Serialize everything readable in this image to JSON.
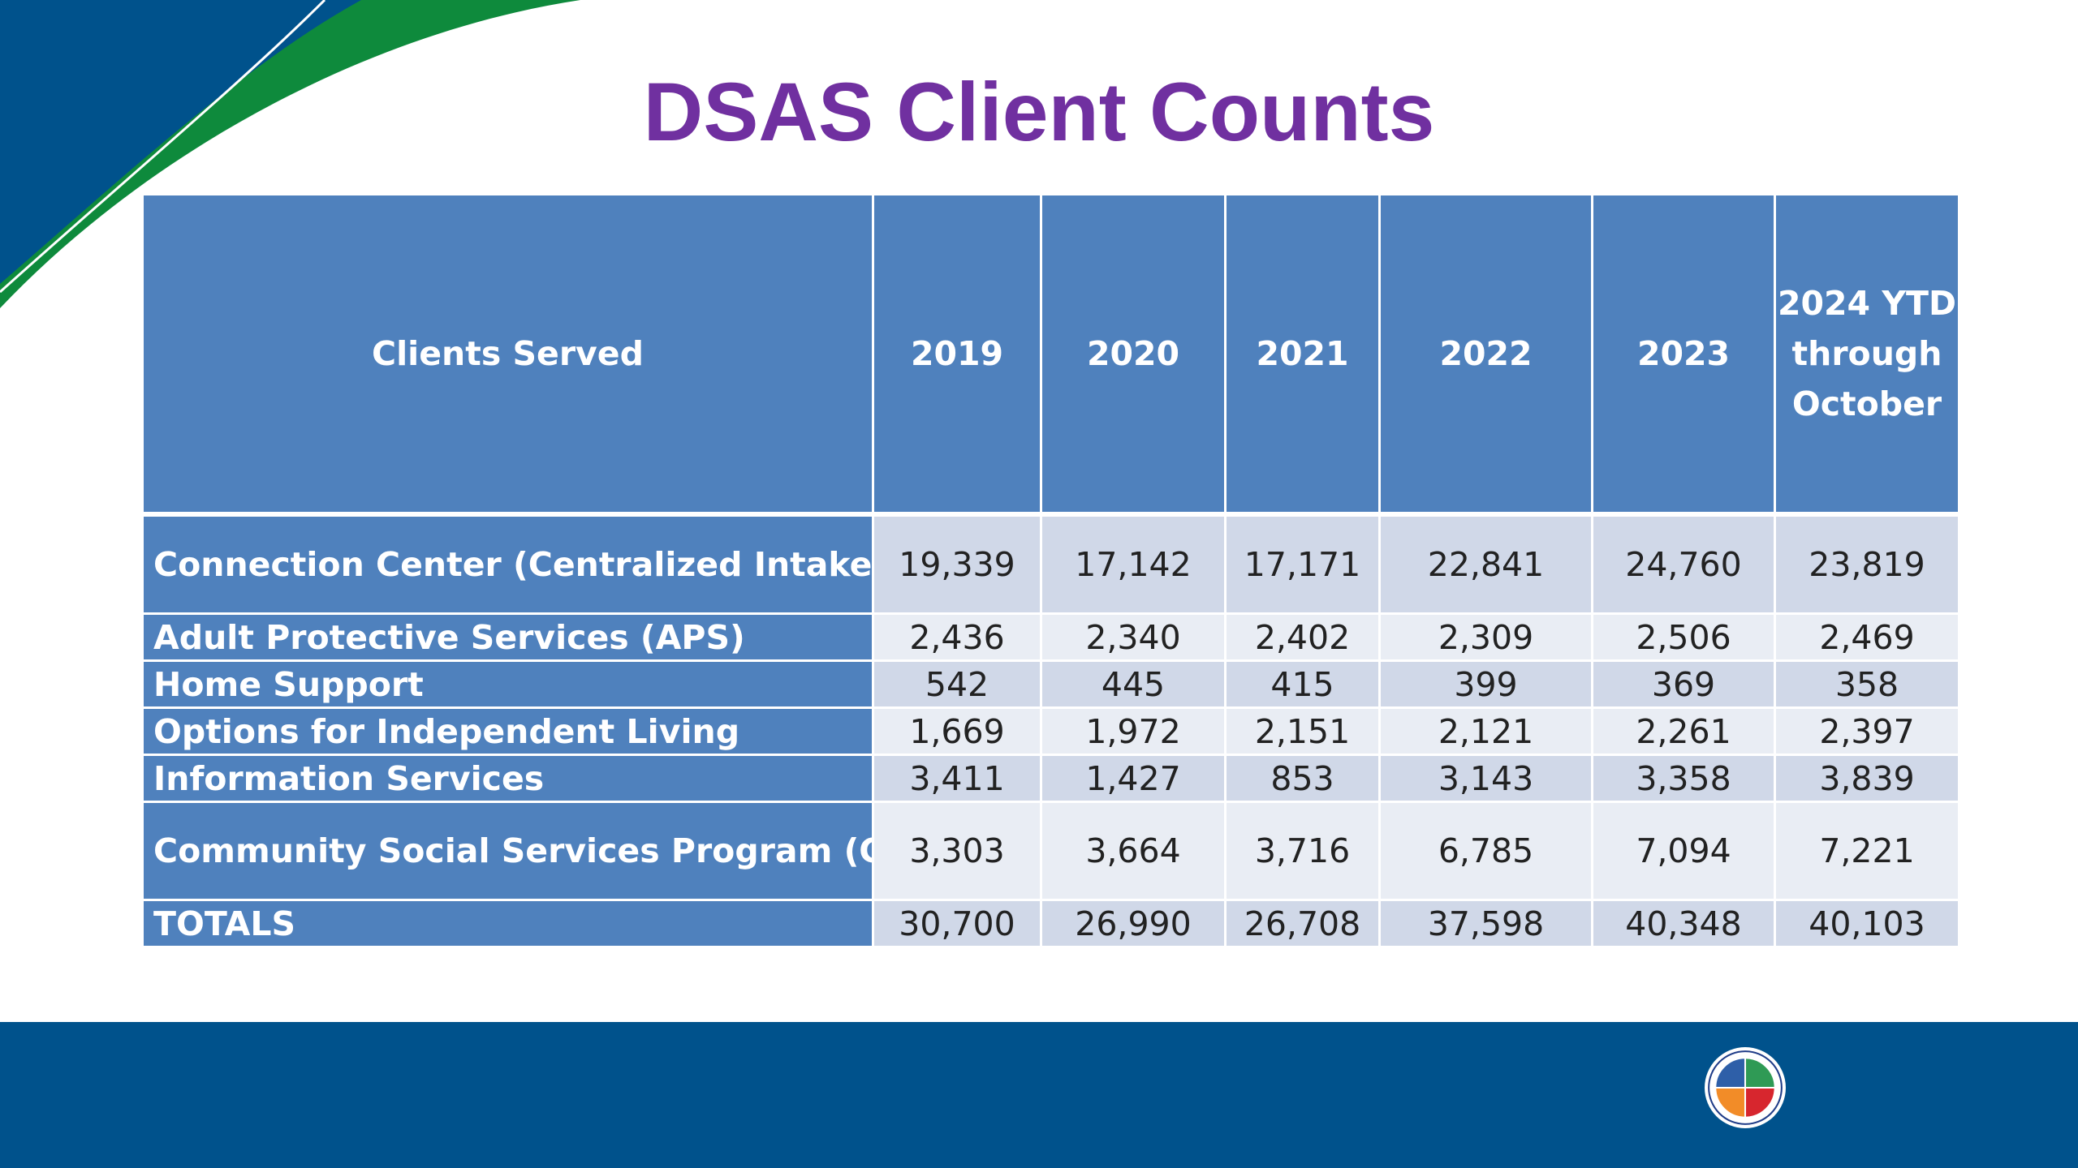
{
  "slide": {
    "title": "DSAS Client Counts"
  },
  "table": {
    "header": {
      "label": "Clients Served",
      "columns": [
        "2019",
        "2020",
        "2021",
        "2022",
        "2023"
      ],
      "ytd_line1": "2024 YTD",
      "ytd_line2": "through",
      "ytd_line3": "October"
    },
    "rows": [
      {
        "label": "Connection Center (Centralized Intake)",
        "values": [
          "19,339",
          "17,142",
          "17,171",
          "22,841",
          "24,760",
          "23,819"
        ]
      },
      {
        "label": "Adult Protective Services (APS)",
        "values": [
          "2,436",
          "2,340",
          "2,402",
          "2,309",
          "2,506",
          "2,469"
        ]
      },
      {
        "label": "Home Support",
        "values": [
          "542",
          "445",
          "415",
          "399",
          "369",
          "358"
        ]
      },
      {
        "label": "Options for Independent Living",
        "values": [
          "1,669",
          "1,972",
          "2,151",
          "2,121",
          "2,261",
          "2,397"
        ]
      },
      {
        "label": "Information Services",
        "values": [
          "3,411",
          "1,427",
          "853",
          "3,143",
          "3,358",
          "3,839"
        ]
      },
      {
        "label": "Community Social Services Program (CSSP)",
        "values": [
          "3,303",
          "3,664",
          "3,716",
          "6,785",
          "7,094",
          "7,221"
        ]
      },
      {
        "label": "TOTALS",
        "values": [
          "30,700",
          "26,990",
          "26,708",
          "37,598",
          "40,348",
          "40,103"
        ]
      }
    ]
  },
  "theme": {
    "title_color": "#7030a0",
    "header_fill": "#4f81bd",
    "band_dark": "#d0d8e8",
    "band_light": "#e9edf4",
    "footer_color": "#00528c",
    "swoosh_navy": "#00528c",
    "swoosh_green": "#0e8a3c"
  },
  "footer": {
    "seal_icon": "county-seal-icon"
  }
}
